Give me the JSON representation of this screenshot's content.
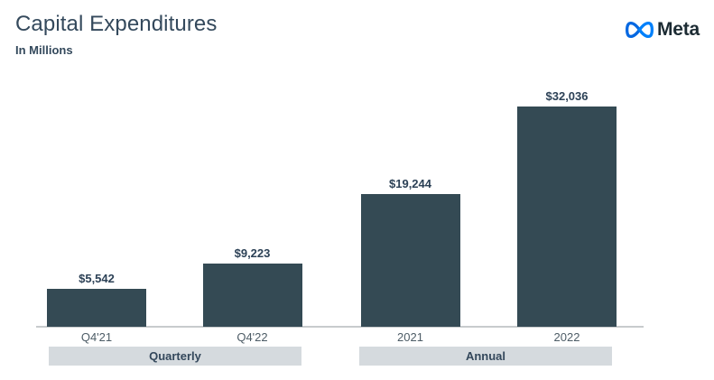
{
  "header": {
    "title": "Capital Expenditures",
    "subtitle": "In Millions"
  },
  "logo": {
    "brand": "Meta",
    "icon": "meta-infinity-icon",
    "icon_color_left": "#0668E1",
    "icon_color_right": "#0080FB",
    "wordmark_color": "#1C2B33"
  },
  "chart_data": {
    "type": "bar",
    "title": "Capital Expenditures",
    "subtitle": "In Millions",
    "categories": [
      "Q4'21",
      "Q4'22",
      "2021",
      "2022"
    ],
    "values": [
      5542,
      9223,
      19244,
      32036
    ],
    "value_labels": [
      "$5,542",
      "$9,223",
      "$19,244",
      "$32,036"
    ],
    "groups": [
      {
        "label": "Quarterly",
        "categories": [
          "Q4'21",
          "Q4'22"
        ]
      },
      {
        "label": "Annual",
        "categories": [
          "2021",
          "2022"
        ]
      }
    ],
    "ylim": [
      0,
      32036
    ],
    "bar_color": "#344a54",
    "value_label_color": "#2c4156",
    "axis_label_color": "#4d5c66",
    "axis_line_color": "#c8cbcd",
    "group_pill_bg": "#d5dade",
    "group_pill_text_color": "#33475b",
    "grid": false,
    "legend": false
  }
}
